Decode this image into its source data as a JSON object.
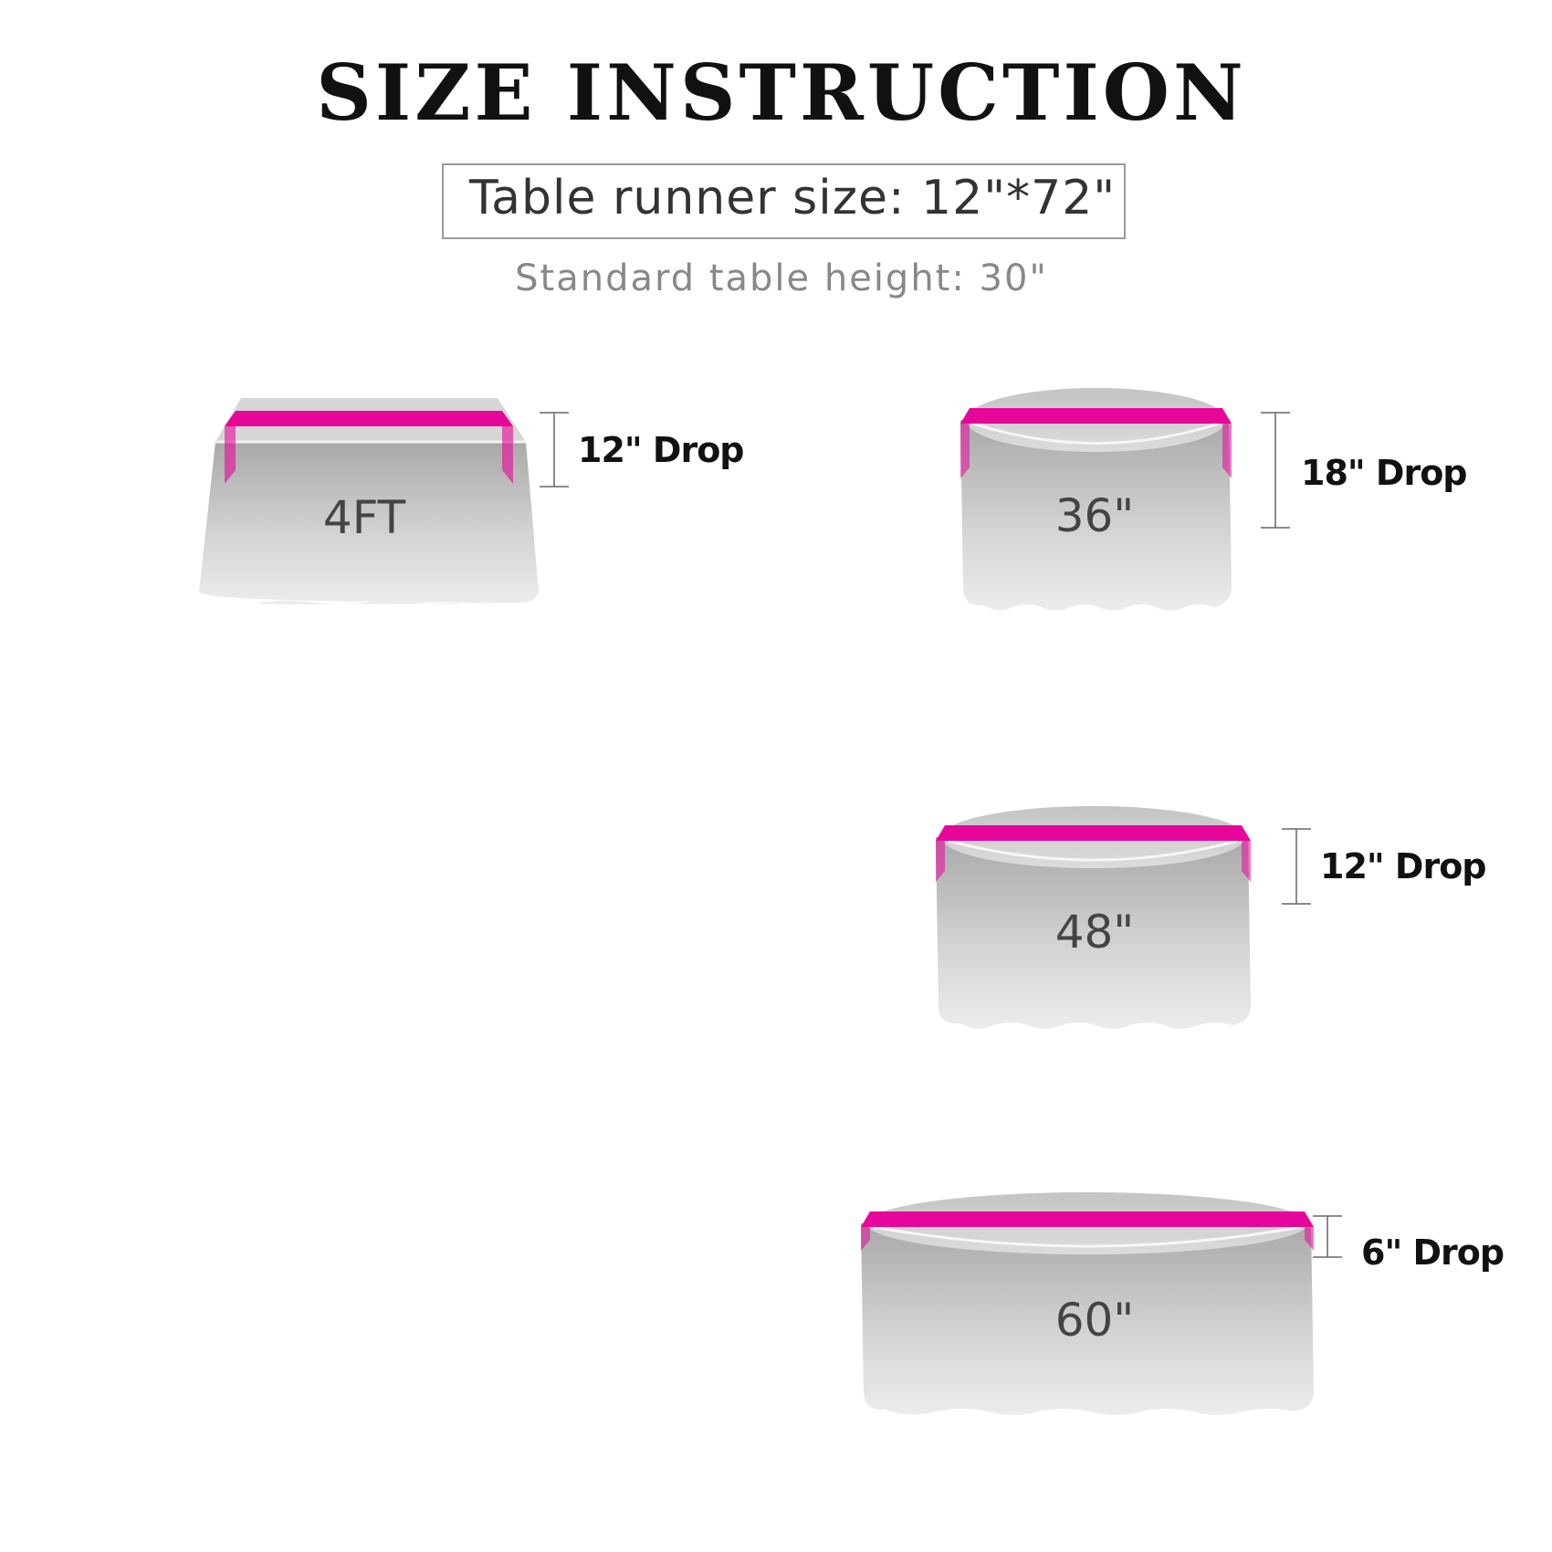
{
  "title": "SIZE INSTRUCTION",
  "runner_size": "Table runner size: 12\"*72\"",
  "table_height": "Standard table height: 30\"",
  "colors": {
    "runner": "#e6079a",
    "cloth": "#c8c8c8"
  },
  "tables": [
    {
      "label": "4FT",
      "shape": "rectangular",
      "drop": "12\" Drop"
    },
    {
      "label": "36\"",
      "shape": "round",
      "drop": "18\" Drop"
    },
    {
      "label": "48\"",
      "shape": "round",
      "drop": "12\" Drop"
    },
    {
      "label": "60\"",
      "shape": "round",
      "drop": "6\" Drop"
    }
  ]
}
